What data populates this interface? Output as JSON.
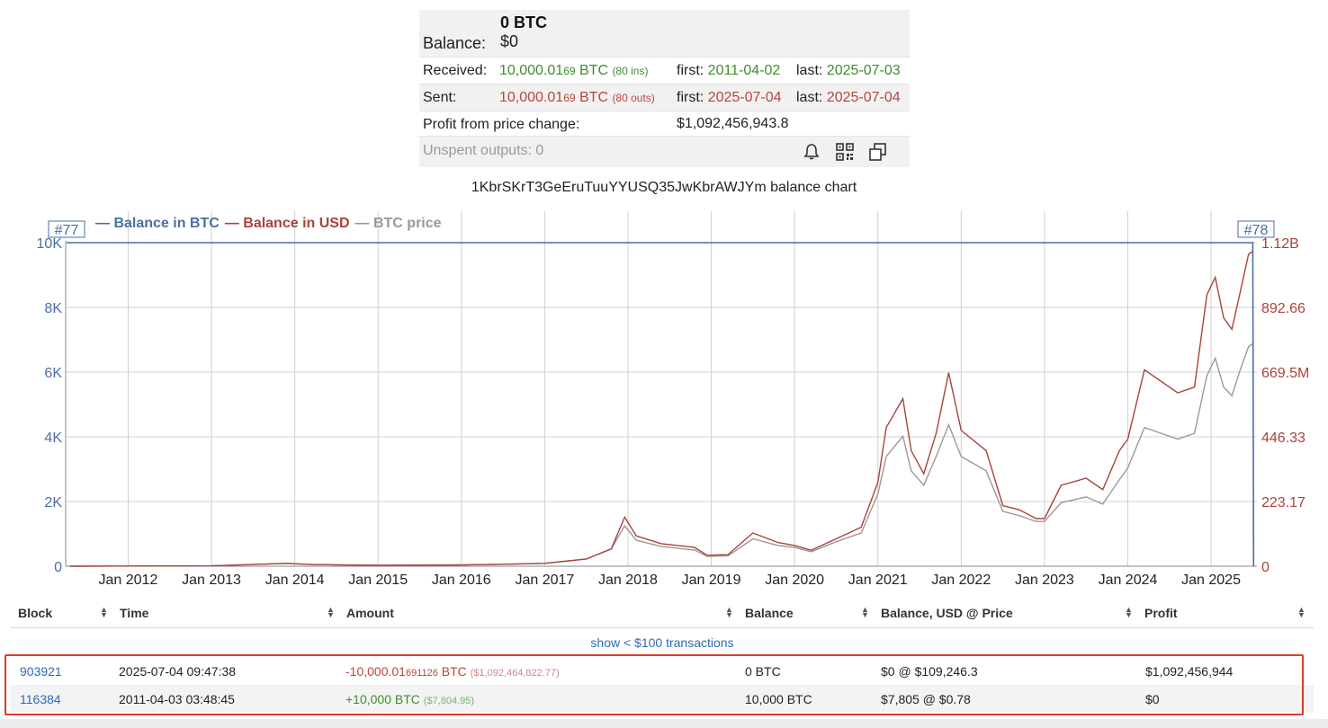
{
  "summary": {
    "balance_label": "Balance:",
    "balance_btc": "0 BTC",
    "balance_usd": "$0",
    "received": {
      "label": "Received:",
      "amount_main": "10,000.01",
      "amount_small": "69",
      "unit": " BTC ",
      "count": "(80 ins)",
      "first_label": "first: ",
      "first_date": "2011-04-02",
      "last_label": "last: ",
      "last_date": "2025-07-03"
    },
    "sent": {
      "label": "Sent:",
      "amount_main": "10,000.01",
      "amount_small": "69",
      "unit": " BTC ",
      "count": "(80 outs)",
      "first_label": "first: ",
      "first_date": "2025-07-04",
      "last_label": "last: ",
      "last_date": "2025-07-04"
    },
    "profit_label": "Profit from price change:",
    "profit_value": "$1,092,456,943.8",
    "unspent_label": "Unspent outputs: 0",
    "icons": [
      "bell-icon",
      "qr-code-icon",
      "copy-icon"
    ]
  },
  "chart_title": "1KbrSKrT3GeEruTuuYYUSQ35JwKbrAWJYm balance chart",
  "chart_data": {
    "type": "line",
    "legend": [
      {
        "name": "Balance in BTC",
        "color": "#4a6fa5"
      },
      {
        "name": "Balance in USD",
        "color": "#a8433b"
      },
      {
        "name": "BTC price",
        "color": "#999999"
      }
    ],
    "marker_left": "#77",
    "marker_right": "#78",
    "x_ticks": [
      "Jan 2012",
      "Jan 2013",
      "Jan 2014",
      "Jan 2015",
      "Jan 2016",
      "Jan 2017",
      "Jan 2018",
      "Jan 2019",
      "Jan 2020",
      "Jan 2021",
      "Jan 2022",
      "Jan 2023",
      "Jan 2024",
      "Jan 2025"
    ],
    "x_range": [
      2011.25,
      2025.55
    ],
    "y_left_ticks": [
      "0",
      "2K",
      "4K",
      "6K",
      "8K",
      "10K"
    ],
    "y_left_range": [
      0,
      10000
    ],
    "y_right_ticks": [
      "0",
      "223.17",
      "446.33",
      "669.5M",
      "892.66",
      "1.12B"
    ],
    "y_right_range": [
      0,
      1.12
    ],
    "series": [
      {
        "name": "Balance in BTC",
        "points": [
          [
            2011.26,
            10000
          ],
          [
            2025.5,
            10000
          ],
          [
            2025.51,
            0
          ]
        ]
      },
      {
        "name": "Balance in USD",
        "points": [
          [
            2011.3,
            0.001
          ],
          [
            2012.0,
            0.05
          ],
          [
            2013.0,
            0.13
          ],
          [
            2013.9,
            1.0
          ],
          [
            2014.2,
            0.6
          ],
          [
            2015.0,
            0.3
          ],
          [
            2016.0,
            0.45
          ],
          [
            2016.5,
            0.7
          ],
          [
            2017.0,
            1.0
          ],
          [
            2017.5,
            2.5
          ],
          [
            2017.8,
            6.0
          ],
          [
            2017.96,
            17.0
          ],
          [
            2018.1,
            10.5
          ],
          [
            2018.4,
            7.8
          ],
          [
            2018.8,
            6.5
          ],
          [
            2018.95,
            3.8
          ],
          [
            2019.2,
            4.0
          ],
          [
            2019.5,
            11.5
          ],
          [
            2019.8,
            8.2
          ],
          [
            2020.0,
            7.2
          ],
          [
            2020.2,
            5.5
          ],
          [
            2020.5,
            9.5
          ],
          [
            2020.8,
            13.5
          ],
          [
            2021.0,
            29.0
          ],
          [
            2021.1,
            48.0
          ],
          [
            2021.3,
            58.0
          ],
          [
            2021.4,
            40.0
          ],
          [
            2021.55,
            32.0
          ],
          [
            2021.7,
            46.0
          ],
          [
            2021.85,
            67.0
          ],
          [
            2022.0,
            47.0
          ],
          [
            2022.3,
            40.0
          ],
          [
            2022.5,
            21.0
          ],
          [
            2022.7,
            19.5
          ],
          [
            2022.9,
            16.5
          ],
          [
            2023.0,
            16.5
          ],
          [
            2023.2,
            28.0
          ],
          [
            2023.5,
            30.5
          ],
          [
            2023.7,
            26.5
          ],
          [
            2023.9,
            40.0
          ],
          [
            2024.0,
            44.0
          ],
          [
            2024.2,
            68.0
          ],
          [
            2024.4,
            64.0
          ],
          [
            2024.6,
            60.0
          ],
          [
            2024.8,
            62.0
          ],
          [
            2024.95,
            94.0
          ],
          [
            2025.05,
            100.0
          ],
          [
            2025.15,
            86.0
          ],
          [
            2025.25,
            82.0
          ],
          [
            2025.35,
            95.0
          ],
          [
            2025.45,
            108.0
          ],
          [
            2025.5,
            109.0
          ]
        ]
      },
      {
        "name": "BTC price",
        "points": [
          [
            2011.3,
            0.001
          ],
          [
            2012.0,
            0.05
          ],
          [
            2013.0,
            0.13
          ],
          [
            2013.9,
            1.0
          ],
          [
            2014.2,
            0.6
          ],
          [
            2015.0,
            0.3
          ],
          [
            2016.0,
            0.45
          ],
          [
            2016.5,
            0.7
          ],
          [
            2017.0,
            1.0
          ],
          [
            2017.5,
            2.5
          ],
          [
            2017.8,
            6.0
          ],
          [
            2017.96,
            14.0
          ],
          [
            2018.1,
            9.0
          ],
          [
            2018.4,
            6.8
          ],
          [
            2018.8,
            5.6
          ],
          [
            2018.95,
            3.4
          ],
          [
            2019.2,
            3.6
          ],
          [
            2019.5,
            9.5
          ],
          [
            2019.8,
            7.2
          ],
          [
            2020.0,
            6.5
          ],
          [
            2020.2,
            5.0
          ],
          [
            2020.5,
            8.5
          ],
          [
            2020.8,
            11.5
          ],
          [
            2021.0,
            25.0
          ],
          [
            2021.1,
            38.0
          ],
          [
            2021.3,
            45.0
          ],
          [
            2021.4,
            33.0
          ],
          [
            2021.55,
            28.0
          ],
          [
            2021.7,
            38.0
          ],
          [
            2021.85,
            49.0
          ],
          [
            2022.0,
            38.0
          ],
          [
            2022.3,
            33.0
          ],
          [
            2022.5,
            19.0
          ],
          [
            2022.7,
            17.5
          ],
          [
            2022.9,
            15.5
          ],
          [
            2023.0,
            15.5
          ],
          [
            2023.2,
            22.0
          ],
          [
            2023.5,
            24.0
          ],
          [
            2023.7,
            21.5
          ],
          [
            2023.9,
            30.0
          ],
          [
            2024.0,
            34.0
          ],
          [
            2024.2,
            48.0
          ],
          [
            2024.4,
            46.0
          ],
          [
            2024.6,
            44.0
          ],
          [
            2024.8,
            46.0
          ],
          [
            2024.95,
            66.0
          ],
          [
            2025.05,
            72.0
          ],
          [
            2025.15,
            62.0
          ],
          [
            2025.25,
            59.0
          ],
          [
            2025.35,
            68.0
          ],
          [
            2025.45,
            76.0
          ],
          [
            2025.5,
            77.0
          ]
        ]
      }
    ]
  },
  "table": {
    "headers": [
      "Block",
      "Time",
      "Amount",
      "Balance",
      "Balance, USD @ Price",
      "Profit"
    ],
    "show_small": "show < $100 transactions",
    "rows": [
      {
        "block": "903921",
        "time": "2025-07-04 09:47:38",
        "amount_main": "-10,000.01",
        "amount_small": "691126",
        "amount_unit": " BTC ",
        "amount_usd": "($1,092,464,822.77)",
        "balance": "0 BTC",
        "balance_usd": "$0 @ $109,246.3",
        "profit": "$1,092,456,944"
      },
      {
        "block": "116384",
        "time": "2011-04-03 03:48:45",
        "amount_main": "+10,000",
        "amount_small": "",
        "amount_unit": " BTC ",
        "amount_usd": "($7,804.95)",
        "balance": "10,000 BTC",
        "balance_usd": "$7,805 @ $0.78",
        "profit": "$0"
      }
    ]
  }
}
